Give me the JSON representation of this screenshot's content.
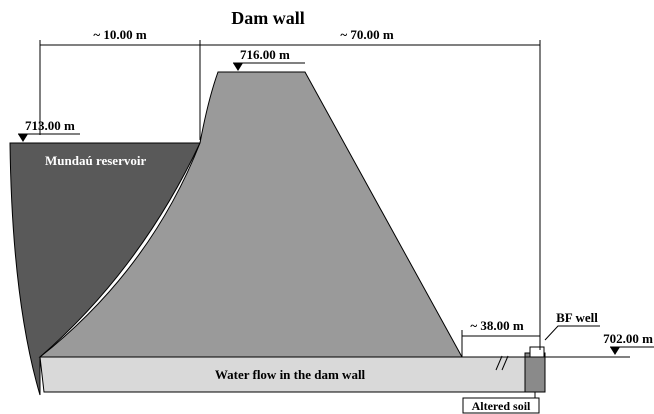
{
  "title": "Dam wall",
  "dimensions": [
    "~ 10.00 m",
    "~ 70.00 m",
    "~ 38.00 m"
  ],
  "elevations": [
    "716.00 m",
    "713.00 m",
    "702.00 m"
  ],
  "labels": {
    "reservoir": "Mundaú reservoir",
    "flow": "Water flow in the dam wall",
    "well": "BF well",
    "soil": "Altered soil"
  }
}
